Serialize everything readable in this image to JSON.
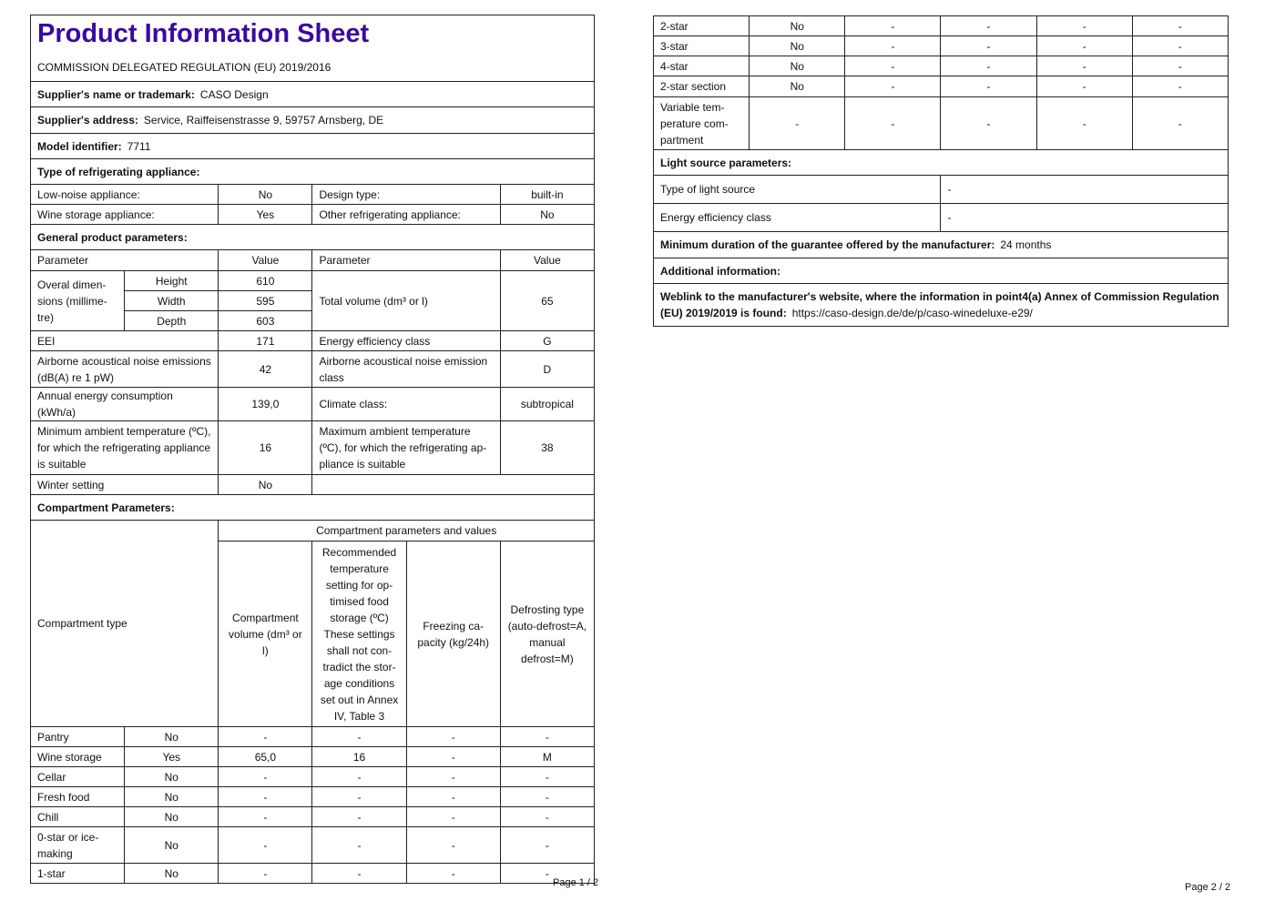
{
  "page1": {
    "title": "Product Information Sheet",
    "regulation": "COMMISSION DELEGATED REGULATION (EU) 2019/2016",
    "supplier_name": {
      "label": "Supplier's name or trademark:",
      "value": "CASO Design"
    },
    "supplier_address": {
      "label": "Supplier's address:",
      "value": "Service, Raiffeisenstrasse 9, 59757 Arnsberg, DE"
    },
    "model": {
      "label": "Model identifier:",
      "value": "7711"
    },
    "type_heading": "Type of refrigerating appliance:",
    "type": {
      "low_noise": {
        "label": "Low-noise appliance:",
        "value": "No"
      },
      "design_type": {
        "label": "Design type:",
        "value": "built-in"
      },
      "wine_storage": {
        "label": "Wine storage appliance:",
        "value": "Yes"
      },
      "other": {
        "label": "Other refrigerating appliance:",
        "value": "No"
      }
    },
    "general_heading": "General product parameters:",
    "general": {
      "col_parameter": "Parameter",
      "col_value": "Value",
      "dimensions_label": "Overal dimen­sions (millime­tre)",
      "height": {
        "label": "Height",
        "value": "610"
      },
      "width": {
        "label": "Width",
        "value": "595"
      },
      "depth": {
        "label": "Depth",
        "value": "603"
      },
      "total_volume": {
        "label": "Total volume (dm³ or l)",
        "value": "65"
      },
      "eei": {
        "label": "EEI",
        "value": "171"
      },
      "energy_class": {
        "label": "Energy efficiency class",
        "value": "G"
      },
      "noise": {
        "label": "Airborne acoustical noise emissions (dB(A) re 1 pW)",
        "value": "42"
      },
      "noise_class": {
        "label": "Airborne acoustical noise emission class",
        "value": "D"
      },
      "annual_energy": {
        "label": "Annual energy consumption (kWh/a)",
        "value": "139,0"
      },
      "climate": {
        "label": "Climate class:",
        "value": "subtropical"
      },
      "min_temp": {
        "label": "Minimum ambient temperature (ºC), for which the refrigerating ap­pliance is suitable",
        "value": "16"
      },
      "max_temp": {
        "label": "Maximum ambient temperature (ºC), for which the refrigerating ap­pliance is suitable",
        "value": "38"
      },
      "winter": {
        "label": "Winter setting",
        "value": "No"
      }
    },
    "compartment_heading": "Compartment Parameters:",
    "compartment": {
      "type_header": "Compartment type",
      "group_header": "Compartment parameters and values",
      "headers": [
        "Compart­ment volume (dm³ or l)",
        "Recommended temperature setting for op­timised food storage (ºC) These settings shall not con­tradict the stor­age conditions set out in An­nex IV, Table 3",
        "Freezing ca­pacity (kg/24h)",
        "Defrosting type (auto-de­frost=A, manu­al defrost=M)"
      ],
      "rows": [
        {
          "name": "Pantry",
          "present": "No",
          "values": [
            "-",
            "-",
            "-",
            "-"
          ]
        },
        {
          "name": "Wine storage",
          "present": "Yes",
          "values": [
            "65,0",
            "16",
            "-",
            "M"
          ]
        },
        {
          "name": "Cellar",
          "present": "No",
          "values": [
            "-",
            "-",
            "-",
            "-"
          ]
        },
        {
          "name": "Fresh food",
          "present": "No",
          "values": [
            "-",
            "-",
            "-",
            "-"
          ]
        },
        {
          "name": "Chill",
          "present": "No",
          "values": [
            "-",
            "-",
            "-",
            "-"
          ]
        },
        {
          "name": "0-star or ice-making",
          "present": "No",
          "values": [
            "-",
            "-",
            "-",
            "-"
          ]
        },
        {
          "name": "1-star",
          "present": "No",
          "values": [
            "-",
            "-",
            "-",
            "-"
          ]
        }
      ]
    },
    "page_label": "Page 1 / 2"
  },
  "page2": {
    "compartment_rows": [
      {
        "name": "2-star",
        "present": "No",
        "values": [
          "-",
          "-",
          "-",
          "-"
        ]
      },
      {
        "name": "3-star",
        "present": "No",
        "values": [
          "-",
          "-",
          "-",
          "-"
        ]
      },
      {
        "name": "4-star",
        "present": "No",
        "values": [
          "-",
          "-",
          "-",
          "-"
        ]
      },
      {
        "name": "2-star section",
        "present": "No",
        "values": [
          "-",
          "-",
          "-",
          "-"
        ]
      },
      {
        "name": "Variable tem­perature com­partment",
        "present": "-",
        "values": [
          "-",
          "-",
          "-",
          "-"
        ]
      }
    ],
    "light_heading": "Light source parameters:",
    "light_type": {
      "label": "Type of light source",
      "value": "-"
    },
    "light_class": {
      "label": "Energy efficiency class",
      "value": "-"
    },
    "guarantee": {
      "label": "Minimum duration of the guarantee offered by the manufacturer:",
      "value": "24 months"
    },
    "additional_heading": "Additional information:",
    "weblink": {
      "label": "Weblink to the manufacturer's website, where the information in point4(a) Annex of Commission Regulation (EU) 2019/2019 is found:",
      "value": "https://caso-design.de/de/p/caso-winedeluxe-e29/"
    },
    "page_label": "Page 2 / 2"
  }
}
